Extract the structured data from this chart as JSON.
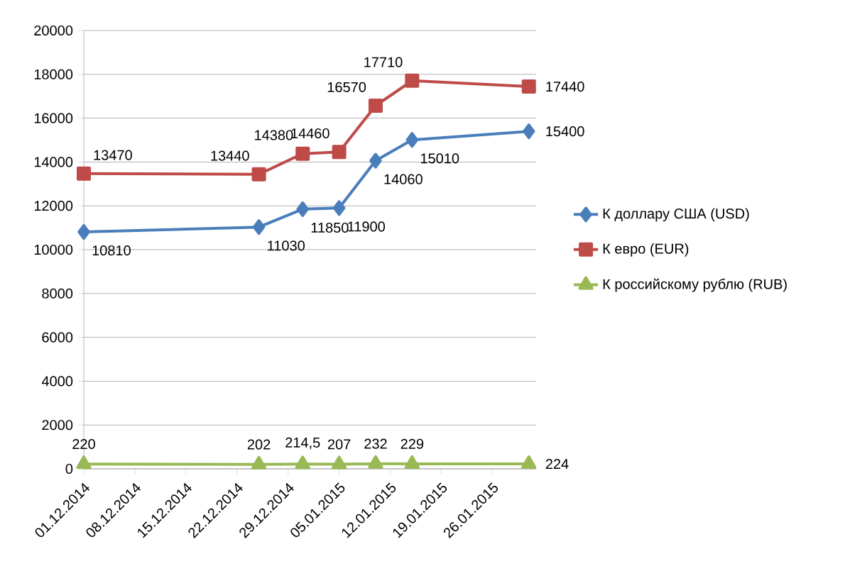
{
  "chart_data": {
    "type": "line",
    "x": [
      "2014-12-01",
      "2014-12-25",
      "2014-12-31",
      "2015-01-05",
      "2015-01-10",
      "2015-01-15",
      "2015-01-31"
    ],
    "series": [
      {
        "name": "К доллару США (USD)",
        "color": "#4a7ebb",
        "marker": "diamond",
        "values": [
          10810,
          11030,
          11850,
          11900,
          14060,
          15010,
          15400
        ],
        "value_labels": [
          "10810",
          "11030",
          "11850",
          "11900",
          "14060",
          "15010",
          "15400"
        ]
      },
      {
        "name": "К евро (EUR)",
        "color": "#be4b48",
        "marker": "square",
        "values": [
          13470,
          13440,
          14380,
          14460,
          16570,
          17710,
          17440
        ],
        "value_labels": [
          "13470",
          "13440",
          "14380",
          "14460",
          "16570",
          "17710",
          "17440"
        ]
      },
      {
        "name": "К российскому рублю (RUB)",
        "color": "#98b954",
        "marker": "triangle",
        "values": [
          220,
          202,
          214.5,
          207,
          232,
          229,
          224
        ],
        "value_labels": [
          "220",
          "202",
          "214,5",
          "207",
          "232",
          "229",
          "224"
        ]
      }
    ],
    "xlim": [
      "2014-12-01",
      "2015-02-01"
    ],
    "xticks": [
      {
        "value": "2014-12-01",
        "label": "01.12.2014"
      },
      {
        "value": "2014-12-08",
        "label": "08.12.2014"
      },
      {
        "value": "2014-12-15",
        "label": "15.12.2014"
      },
      {
        "value": "2014-12-22",
        "label": "22.12.2014"
      },
      {
        "value": "2014-12-29",
        "label": "29.12.2014"
      },
      {
        "value": "2015-01-05",
        "label": "05.01.2015"
      },
      {
        "value": "2015-01-12",
        "label": "12.01.2015"
      },
      {
        "value": "2015-01-19",
        "label": "19.01.2015"
      },
      {
        "value": "2015-01-26",
        "label": "26.01.2015"
      }
    ],
    "ylim": [
      0,
      20000
    ],
    "yticks": [
      0,
      2000,
      4000,
      6000,
      8000,
      10000,
      12000,
      14000,
      16000,
      18000,
      20000
    ],
    "grid": "y",
    "legend": "right",
    "line_style": "solid"
  }
}
